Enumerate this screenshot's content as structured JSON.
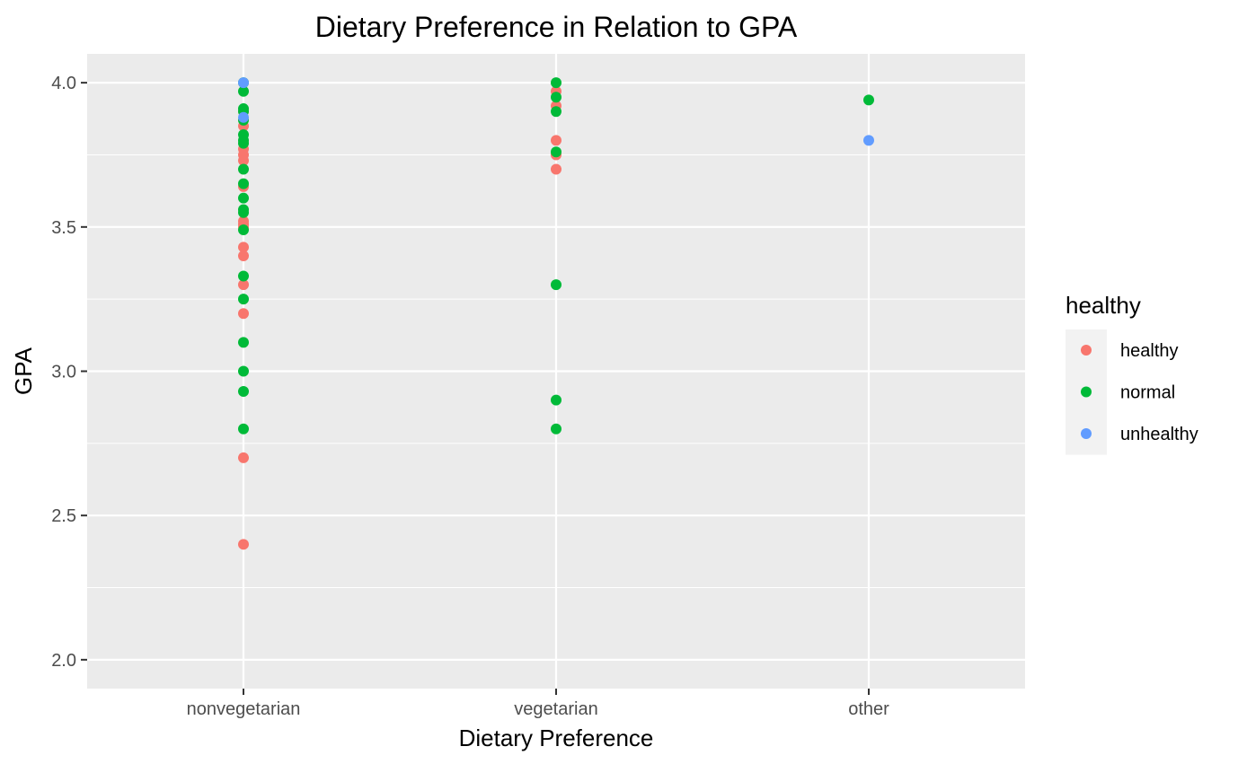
{
  "chart_data": {
    "type": "scatter",
    "title": "Dietary Preference in Relation to GPA",
    "xlabel": "Dietary Preference",
    "ylabel": "GPA",
    "categories": [
      "nonvegetarian",
      "vegetarian",
      "other"
    ],
    "ylim": [
      1.9,
      4.1
    ],
    "yticks": [
      "2.0",
      "2.5",
      "3.0",
      "3.5",
      "4.0"
    ],
    "grid": true,
    "legend": {
      "title": "healthy",
      "position": "right"
    },
    "series": [
      {
        "name": "healthy",
        "color": "#F8766D",
        "points": [
          {
            "x": "nonvegetarian",
            "y": 3.9
          },
          {
            "x": "nonvegetarian",
            "y": 3.85
          },
          {
            "x": "nonvegetarian",
            "y": 3.77
          },
          {
            "x": "nonvegetarian",
            "y": 3.75
          },
          {
            "x": "nonvegetarian",
            "y": 3.73
          },
          {
            "x": "nonvegetarian",
            "y": 3.64
          },
          {
            "x": "nonvegetarian",
            "y": 3.52
          },
          {
            "x": "nonvegetarian",
            "y": 3.51
          },
          {
            "x": "nonvegetarian",
            "y": 3.5
          },
          {
            "x": "nonvegetarian",
            "y": 3.43
          },
          {
            "x": "nonvegetarian",
            "y": 3.4
          },
          {
            "x": "nonvegetarian",
            "y": 3.3
          },
          {
            "x": "nonvegetarian",
            "y": 3.2
          },
          {
            "x": "nonvegetarian",
            "y": 2.7
          },
          {
            "x": "nonvegetarian",
            "y": 2.4
          },
          {
            "x": "vegetarian",
            "y": 3.97
          },
          {
            "x": "vegetarian",
            "y": 3.92
          },
          {
            "x": "vegetarian",
            "y": 3.8
          },
          {
            "x": "vegetarian",
            "y": 3.75
          },
          {
            "x": "vegetarian",
            "y": 3.7
          }
        ]
      },
      {
        "name": "normal",
        "color": "#00BA38",
        "points": [
          {
            "x": "nonvegetarian",
            "y": 4.0
          },
          {
            "x": "nonvegetarian",
            "y": 3.97
          },
          {
            "x": "nonvegetarian",
            "y": 3.91
          },
          {
            "x": "nonvegetarian",
            "y": 3.9
          },
          {
            "x": "nonvegetarian",
            "y": 3.87
          },
          {
            "x": "nonvegetarian",
            "y": 3.82
          },
          {
            "x": "nonvegetarian",
            "y": 3.8
          },
          {
            "x": "nonvegetarian",
            "y": 3.79
          },
          {
            "x": "nonvegetarian",
            "y": 3.7
          },
          {
            "x": "nonvegetarian",
            "y": 3.65
          },
          {
            "x": "nonvegetarian",
            "y": 3.6
          },
          {
            "x": "nonvegetarian",
            "y": 3.56
          },
          {
            "x": "nonvegetarian",
            "y": 3.55
          },
          {
            "x": "nonvegetarian",
            "y": 3.49
          },
          {
            "x": "nonvegetarian",
            "y": 3.33
          },
          {
            "x": "nonvegetarian",
            "y": 3.25
          },
          {
            "x": "nonvegetarian",
            "y": 3.1
          },
          {
            "x": "nonvegetarian",
            "y": 3.0
          },
          {
            "x": "nonvegetarian",
            "y": 2.93
          },
          {
            "x": "nonvegetarian",
            "y": 2.8
          },
          {
            "x": "vegetarian",
            "y": 4.0
          },
          {
            "x": "vegetarian",
            "y": 3.95
          },
          {
            "x": "vegetarian",
            "y": 3.9
          },
          {
            "x": "vegetarian",
            "y": 3.76
          },
          {
            "x": "vegetarian",
            "y": 3.3
          },
          {
            "x": "vegetarian",
            "y": 2.9
          },
          {
            "x": "vegetarian",
            "y": 2.8
          },
          {
            "x": "other",
            "y": 3.94
          }
        ]
      },
      {
        "name": "unhealthy",
        "color": "#619CFF",
        "points": [
          {
            "x": "nonvegetarian",
            "y": 4.0
          },
          {
            "x": "nonvegetarian",
            "y": 3.88
          },
          {
            "x": "other",
            "y": 3.8
          }
        ]
      }
    ]
  }
}
